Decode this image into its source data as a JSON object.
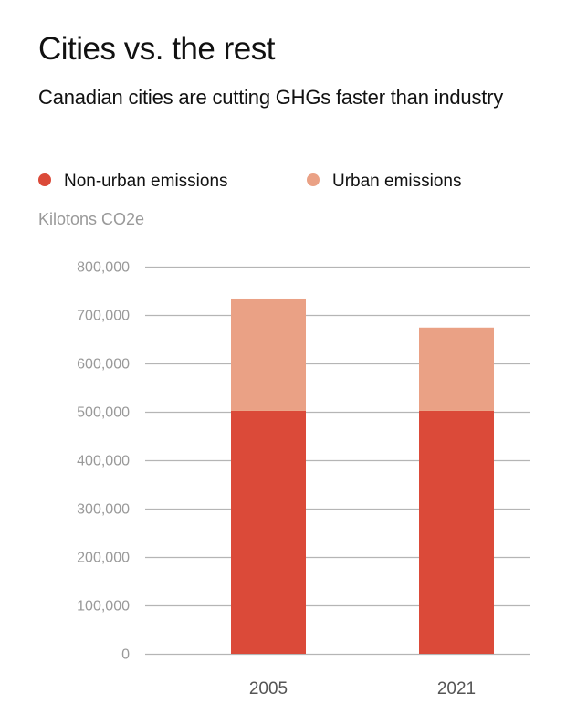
{
  "header": {
    "title": "Cities vs. the rest",
    "subtitle": "Canadian cities are cutting GHGs faster than industry"
  },
  "legend": [
    {
      "label": "Non-urban emissions",
      "color": "#db4a39"
    },
    {
      "label": "Urban emissions",
      "color": "#eaa185"
    }
  ],
  "unit_label": "Kilotons CO2e",
  "chart_data": {
    "type": "bar",
    "stacked": true,
    "title": "Cities vs. the rest",
    "subtitle": "Canadian cities are cutting GHGs faster than industry",
    "xlabel": "",
    "ylabel": "Kilotons CO2e",
    "categories": [
      "2005",
      "2021"
    ],
    "series": [
      {
        "name": "Non-urban emissions",
        "color": "#db4a39",
        "values": [
          502000,
          502000
        ]
      },
      {
        "name": "Urban emissions",
        "color": "#eaa185",
        "values": [
          232000,
          172000
        ]
      }
    ],
    "totals": [
      734000,
      674000
    ],
    "ylim": [
      0,
      800000
    ],
    "yticks": [
      0,
      100000,
      200000,
      300000,
      400000,
      500000,
      600000,
      700000,
      800000
    ],
    "ytick_labels": [
      "0",
      "100,000",
      "200,000",
      "300,000",
      "400,000",
      "500,000",
      "600,000",
      "700,000",
      "800,000"
    ],
    "grid": true,
    "legend_position": "top-left"
  }
}
